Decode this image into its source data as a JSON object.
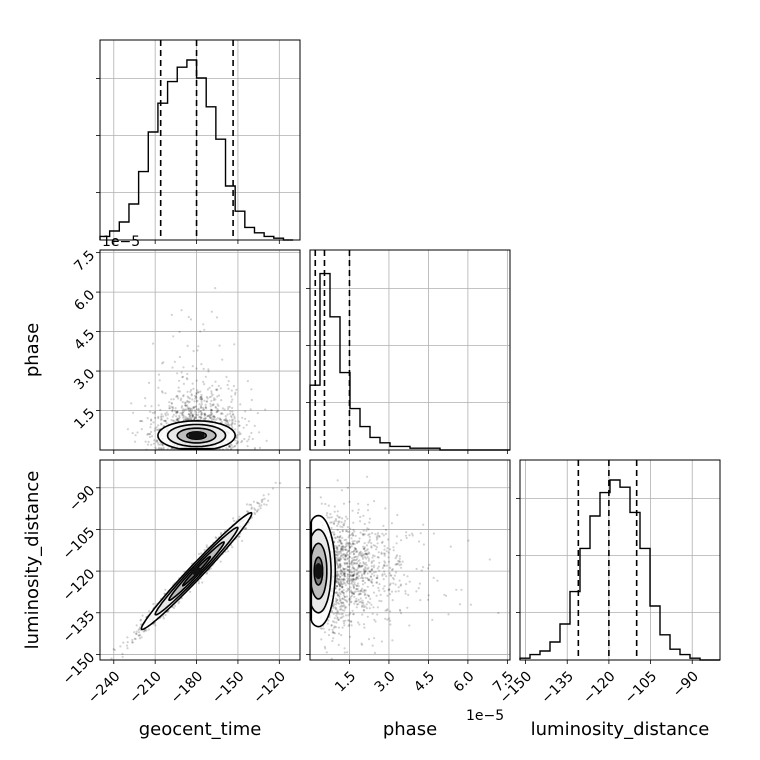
{
  "chart_data": {
    "type": "corner",
    "parameters": [
      "geocent_time",
      "phase",
      "luminosity_distance"
    ],
    "axes": {
      "geocent_time": {
        "label": "geocent_time",
        "range": [
          -250,
          -105
        ],
        "ticks": [
          -240,
          -210,
          -180,
          -150,
          -120
        ],
        "tick_labels": [
          "−240",
          "−210",
          "−180",
          "−150",
          "−120"
        ]
      },
      "phase": {
        "label": "phase",
        "range": [
          0.0,
          7.6
        ],
        "scale_note": "1e−5",
        "ticks": [
          1.5,
          3.0,
          4.5,
          6.0,
          7.5
        ],
        "tick_labels": [
          "1.5",
          "3.0",
          "4.5",
          "6.0",
          "7.5"
        ]
      },
      "luminosity_distance": {
        "label": "luminosity_distance",
        "range": [
          -152,
          -80
        ],
        "ticks": [
          -150,
          -135,
          -120,
          -105,
          -90
        ],
        "tick_labels": [
          "−150",
          "−135",
          "−120",
          "−105",
          "−90"
        ]
      }
    },
    "histograms": [
      {
        "param": "geocent_time",
        "bin_edges": [
          -250,
          -243,
          -236,
          -229,
          -222,
          -215,
          -208,
          -201,
          -194,
          -187,
          -180,
          -173,
          -166,
          -159,
          -152,
          -145,
          -138,
          -131,
          -124,
          -117,
          -110
        ],
        "counts": [
          0.02,
          0.05,
          0.1,
          0.2,
          0.38,
          0.6,
          0.76,
          0.88,
          0.96,
          1.0,
          0.9,
          0.74,
          0.56,
          0.3,
          0.16,
          0.07,
          0.04,
          0.02,
          0.01,
          0.0
        ],
        "quantiles": [
          -206,
          -180,
          -153.5
        ]
      },
      {
        "param": "phase",
        "bin_edges": [
          0.0,
          0.38,
          0.76,
          1.14,
          1.52,
          1.9,
          2.28,
          2.66,
          3.04,
          3.42,
          3.8,
          4.18,
          4.56,
          4.94,
          5.32,
          5.7,
          6.08,
          6.46,
          6.84,
          7.22,
          7.6
        ],
        "counts": [
          0.36,
          0.98,
          0.74,
          0.43,
          0.23,
          0.13,
          0.07,
          0.04,
          0.02,
          0.02,
          0.01,
          0.01,
          0.01,
          0.0,
          0.0,
          0.0,
          0.0,
          0.0,
          0.0,
          0.0
        ],
        "quantiles": [
          0.2,
          0.55,
          1.5
        ]
      },
      {
        "param": "luminosity_distance",
        "bin_edges": [
          -152,
          -148.4,
          -144.8,
          -141.2,
          -137.6,
          -134,
          -130.4,
          -126.8,
          -123.2,
          -119.6,
          -116,
          -112.4,
          -108.8,
          -105.2,
          -101.6,
          -98,
          -94.4,
          -90.8,
          -87.2,
          -83.6,
          -80
        ],
        "counts": [
          0.01,
          0.03,
          0.05,
          0.1,
          0.2,
          0.38,
          0.62,
          0.8,
          0.93,
          1.0,
          0.96,
          0.82,
          0.62,
          0.3,
          0.14,
          0.06,
          0.03,
          0.01,
          0.0,
          0.0
        ],
        "quantiles": [
          -131,
          -120,
          -110
        ]
      }
    ],
    "joint": [
      {
        "x": "geocent_time",
        "y": "phase",
        "center": [
          -180,
          0.6
        ],
        "spread": [
          16,
          0.6
        ],
        "corr": 0.0,
        "n_points": 1400
      },
      {
        "x": "geocent_time",
        "y": "luminosity_distance",
        "center": [
          -180,
          -120
        ],
        "spread": [
          20,
          10.5
        ],
        "corr": 0.985,
        "n_points": 1400
      },
      {
        "x": "phase",
        "y": "luminosity_distance",
        "center": [
          0.4,
          -120
        ],
        "spread": [
          0.9,
          10
        ],
        "corr": 0.0,
        "n_points": 1400
      }
    ],
    "contour_levels_sigma": [
      0.5,
      1.0,
      1.5,
      2.0
    ],
    "grid": true,
    "colors": {
      "line": "#000000",
      "grid": "#b0b0b0",
      "points": "#000000"
    }
  }
}
